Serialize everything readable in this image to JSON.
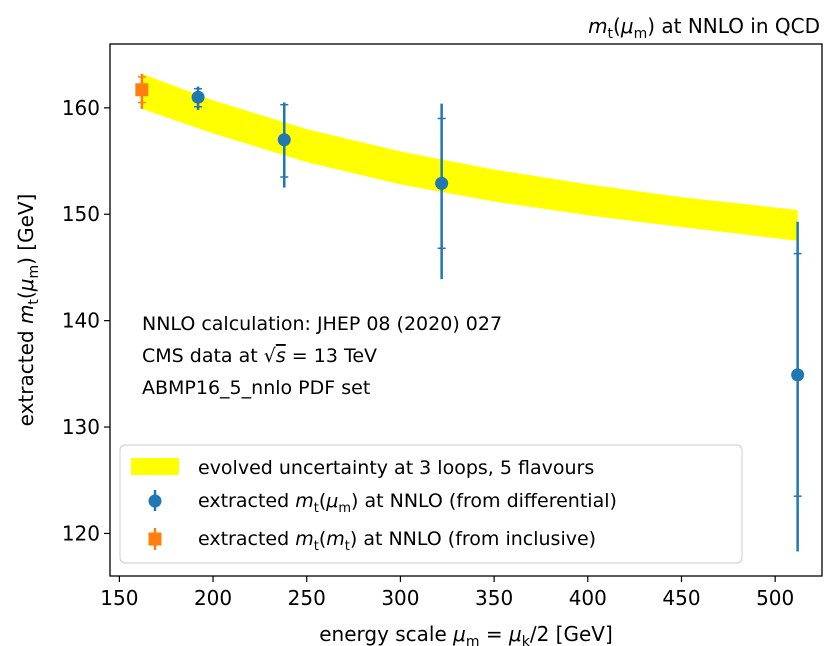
{
  "chart_data": {
    "type": "scatter",
    "title": "m_t(μ_m) at NNLO in QCD",
    "title_parts": {
      "a": "m",
      "b": "t",
      "c": "(",
      "d": "μ",
      "e": "m",
      "f": ") at NNLO in QCD"
    },
    "xlabel": "energy scale μ_m = μ_k/2 [GeV]",
    "xlabel_parts": {
      "a": "energy scale ",
      "b": "μ",
      "c": "m",
      "d": " = ",
      "e": "μ",
      "f": "k",
      "g": "/2 [GeV]"
    },
    "ylabel": "extracted m_t(μ_m) [GeV]",
    "ylabel_parts": {
      "a": "extracted ",
      "b": "m",
      "c": "t",
      "d": "(",
      "e": "μ",
      "f": "m",
      "g": ") [GeV]"
    },
    "xlim": [
      145,
      525
    ],
    "ylim": [
      116,
      166
    ],
    "xticks": [
      "150",
      "200",
      "250",
      "300",
      "350",
      "400",
      "450",
      "500"
    ],
    "xtick_values": [
      150,
      200,
      250,
      300,
      350,
      400,
      450,
      500
    ],
    "yticks": [
      "120",
      "130",
      "140",
      "150",
      "160"
    ],
    "ytick_values": [
      120,
      130,
      140,
      150,
      160
    ],
    "grid": false,
    "legend_position": "lower-left",
    "band": {
      "name": "evolved uncertainty at 3 loops, 5 flavours",
      "color": "#ffff00",
      "x": [
        162,
        200,
        250,
        300,
        350,
        400,
        450,
        512
      ],
      "upper": [
        163.2,
        160.7,
        158.0,
        155.9,
        154.2,
        152.8,
        151.6,
        150.4
      ],
      "lower": [
        159.9,
        157.6,
        154.9,
        152.8,
        151.2,
        149.9,
        148.8,
        147.5
      ]
    },
    "series": [
      {
        "name": "extracted m_t(μ_m) at NNLO (from differential)",
        "name_parts": {
          "a": "extracted ",
          "b": "m",
          "c": "t",
          "d": "(",
          "e": "μ",
          "f": "m",
          "g": ") at NNLO (from differential)"
        },
        "marker": "circle",
        "color": "#1f77b4",
        "x": [
          192,
          238,
          322,
          512
        ],
        "y": [
          161.0,
          157.0,
          152.9,
          134.9
        ],
        "err_total_lo": [
          1.2,
          4.5,
          9.0,
          16.6
        ],
        "err_total_hi": [
          1.0,
          3.5,
          7.5,
          14.4
        ],
        "err_inner_lo": [
          0.9,
          3.5,
          6.1,
          11.4
        ],
        "err_inner_hi": [
          0.8,
          3.3,
          6.1,
          11.4
        ]
      },
      {
        "name": "extracted m_t(m_t) at NNLO (from inclusive)",
        "name_parts": {
          "a": "extracted ",
          "b": "m",
          "c": "t",
          "d": "(",
          "e": "m",
          "f": "t",
          "g": ") at NNLO (from inclusive)"
        },
        "marker": "square",
        "color": "#ff7f0e",
        "x": [
          162
        ],
        "y": [
          161.7
        ],
        "err_total_lo": [
          1.8
        ],
        "err_total_hi": [
          1.5
        ],
        "err_inner_lo": [
          1.2
        ],
        "err_inner_hi": [
          1.2
        ]
      }
    ],
    "annotations": {
      "line1": "NNLO calculation: JHEP 08 (2020) 027",
      "line2_a": "CMS data at ",
      "line2_sqrt": "√",
      "line2_s": "s",
      "line2_b": " = 13 TeV",
      "line3": "ABMP16_5_nnlo PDF set"
    }
  }
}
